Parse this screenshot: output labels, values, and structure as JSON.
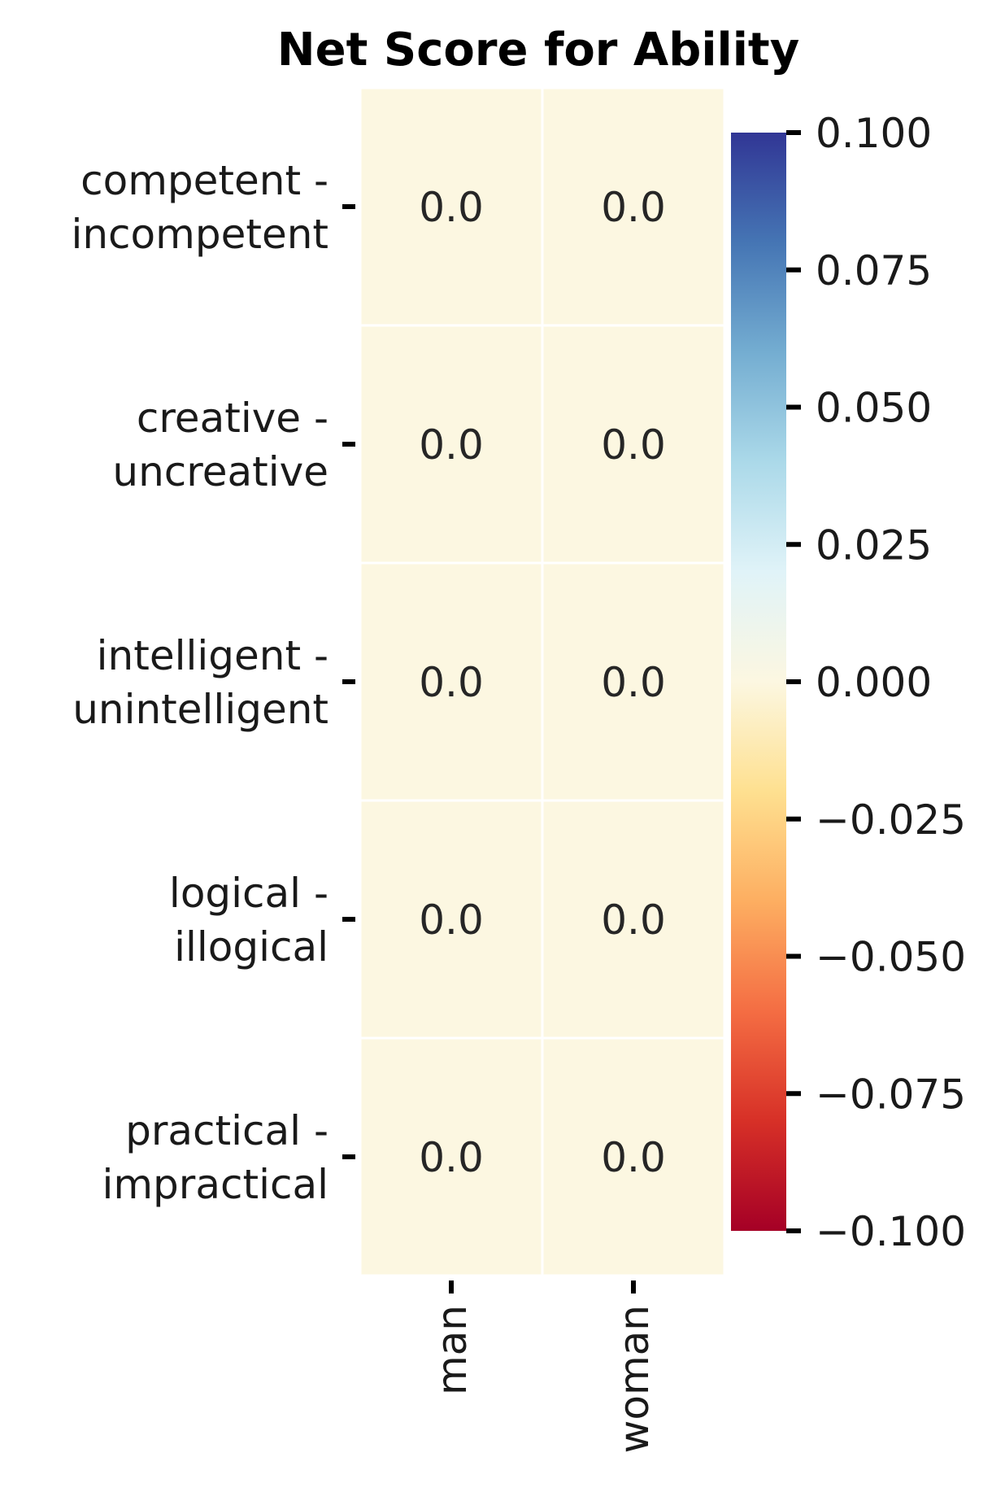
{
  "chart_data": {
    "type": "heatmap",
    "title": "Net Score for Ability",
    "xlabel": "",
    "ylabel": "",
    "rows": [
      [
        "competent -",
        "incompetent"
      ],
      [
        "creative -",
        "uncreative"
      ],
      [
        "intelligent -",
        "unintelligent"
      ],
      [
        "logical -",
        "illogical"
      ],
      [
        "practical -",
        "impractical"
      ]
    ],
    "columns": [
      "man",
      "woman"
    ],
    "values": [
      [
        0.0,
        0.0
      ],
      [
        0.0,
        0.0
      ],
      [
        0.0,
        0.0
      ],
      [
        0.0,
        0.0
      ],
      [
        0.0,
        0.0
      ]
    ],
    "annotations": [
      [
        "0.0",
        "0.0"
      ],
      [
        "0.0",
        "0.0"
      ],
      [
        "0.0",
        "0.0"
      ],
      [
        "0.0",
        "0.0"
      ],
      [
        "0.0",
        "0.0"
      ]
    ],
    "colorbar": {
      "range": [
        -0.1,
        0.1
      ],
      "ticks": [
        0.1,
        0.075,
        0.05,
        0.025,
        0.0,
        -0.025,
        -0.05,
        -0.075,
        -0.1
      ],
      "tick_labels": [
        "0.100",
        "0.075",
        "0.050",
        "0.025",
        "0.000",
        "−0.025",
        "−0.050",
        "−0.075",
        "−0.100"
      ],
      "colormap": "RdYlBu",
      "colors": [
        "#a50026",
        "#d73027",
        "#f46d43",
        "#fdae61",
        "#fee090",
        "#fcf7e1",
        "#e0f3f8",
        "#abd9e9",
        "#74add1",
        "#4575b4",
        "#313695"
      ],
      "cell_color": "#fcf7e1",
      "cell_border_color": "#ffffff"
    },
    "grid": false
  }
}
